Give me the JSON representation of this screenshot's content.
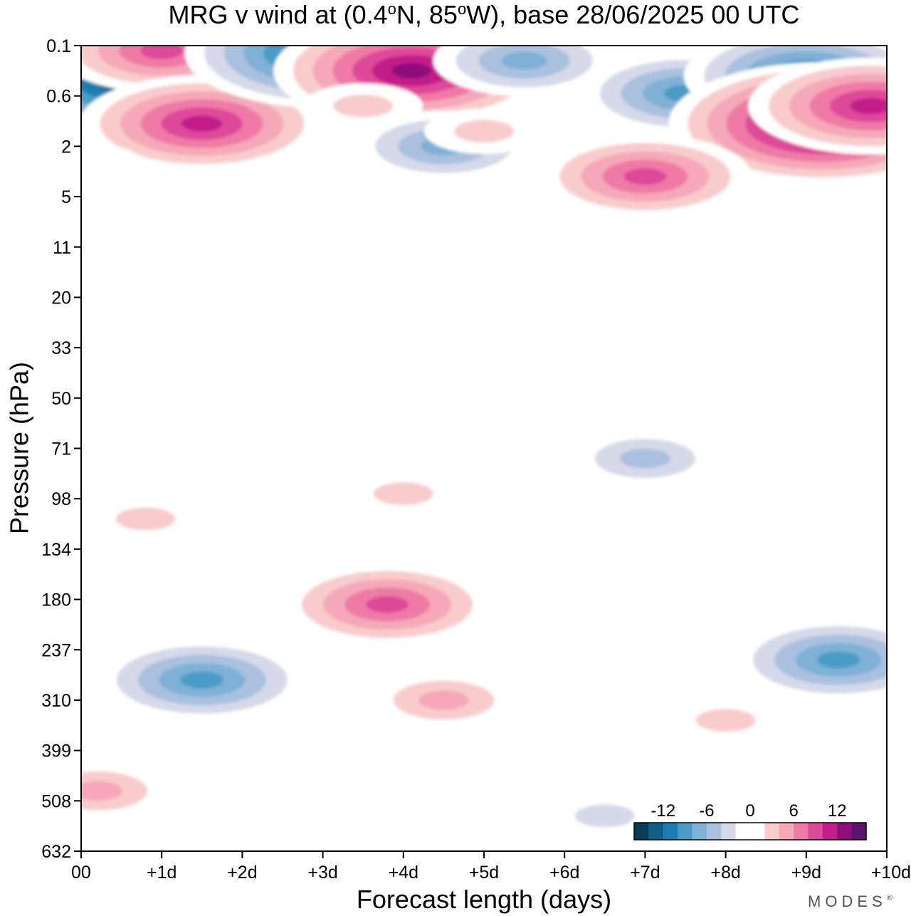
{
  "chart_data": {
    "type": "heatmap",
    "title_main": "MRG v wind at (0.4",
    "title_lat": "N, 85",
    "title_rest": "W),  base 28/06/2025  00 UTC",
    "title_deg": "o",
    "xlabel": "Forecast length (days)",
    "ylabel": "Pressure (hPa)",
    "x_ticks": [
      "00",
      "+1d",
      "+2d",
      "+3d",
      "+4d",
      "+5d",
      "+6d",
      "+7d",
      "+8d",
      "+9d",
      "+10d"
    ],
    "y_ticks": [
      "0.1",
      "0.6",
      "2",
      "5",
      "11",
      "20",
      "33",
      "50",
      "71",
      "98",
      "134",
      "180",
      "237",
      "310",
      "399",
      "508",
      "632"
    ],
    "xlim_days": [
      0,
      10
    ],
    "colorbar": {
      "labels": [
        "-12",
        "-6",
        "0",
        "6",
        "12"
      ],
      "levels": [
        -16,
        -14,
        -12,
        -10,
        -8,
        -6,
        -4,
        -2,
        0,
        2,
        4,
        6,
        8,
        10,
        12,
        14,
        16
      ],
      "colors": [
        "#0a3d55",
        "#105f87",
        "#1d7db3",
        "#4a9cc6",
        "#7fb0d6",
        "#a9c1de",
        "#d5d9e9",
        "#ffffff",
        "#ffffff",
        "#f9cccc",
        "#f5a9b8",
        "#ef7aa6",
        "#de4a9a",
        "#c21d8a",
        "#8f0f7a",
        "#5a1370"
      ]
    },
    "features": [
      {
        "day": 0.45,
        "level": 0.75,
        "value": -14
      },
      {
        "day": 1.0,
        "level": 0.1,
        "value": 11
      },
      {
        "day": 1.5,
        "level": 1.55,
        "value": 13
      },
      {
        "day": 0.2,
        "level": 2.3,
        "value": 3
      },
      {
        "day": 3.0,
        "level": 0.15,
        "value": -15
      },
      {
        "day": 4.1,
        "level": 0.5,
        "value": 15
      },
      {
        "day": 3.5,
        "level": 1.2,
        "value": 5
      },
      {
        "day": 4.5,
        "level": 2.0,
        "value": -9
      },
      {
        "day": 5.0,
        "level": 1.7,
        "value": 5
      },
      {
        "day": 5.5,
        "level": 0.3,
        "value": -9
      },
      {
        "day": 7.5,
        "level": 0.95,
        "value": -10
      },
      {
        "day": 9.0,
        "level": 0.6,
        "value": -12
      },
      {
        "day": 9.2,
        "level": 1.55,
        "value": 16
      },
      {
        "day": 7.0,
        "level": 2.6,
        "value": 10
      },
      {
        "day": 9.8,
        "level": 1.2,
        "value": 13
      },
      {
        "day": 3.5,
        "level": 3.8,
        "value": -3
      },
      {
        "day": 1.5,
        "level": 10.6,
        "value": -3
      },
      {
        "day": 8.0,
        "level": 7.5,
        "value": -3
      },
      {
        "day": 7.0,
        "level": 8.2,
        "value": -6
      },
      {
        "day": 4.0,
        "level": 8.9,
        "value": 5
      },
      {
        "day": 0.8,
        "level": 9.4,
        "value": 4
      },
      {
        "day": 3.6,
        "level": 10.8,
        "value": -5
      },
      {
        "day": 3.8,
        "level": 11.1,
        "value": 11
      },
      {
        "day": 1.5,
        "level": 12.6,
        "value": -10
      },
      {
        "day": 9.4,
        "level": 12.2,
        "value": -10
      },
      {
        "day": 4.5,
        "level": 13.0,
        "value": 6
      },
      {
        "day": 8.0,
        "level": 13.4,
        "value": 5
      },
      {
        "day": 0.2,
        "level": 14.8,
        "value": 7
      },
      {
        "day": 6.5,
        "level": 15.3,
        "value": -5
      },
      {
        "day": 3.5,
        "level": 15.3,
        "value": -3
      }
    ]
  },
  "brand": "MODES",
  "brand_mark": "®"
}
